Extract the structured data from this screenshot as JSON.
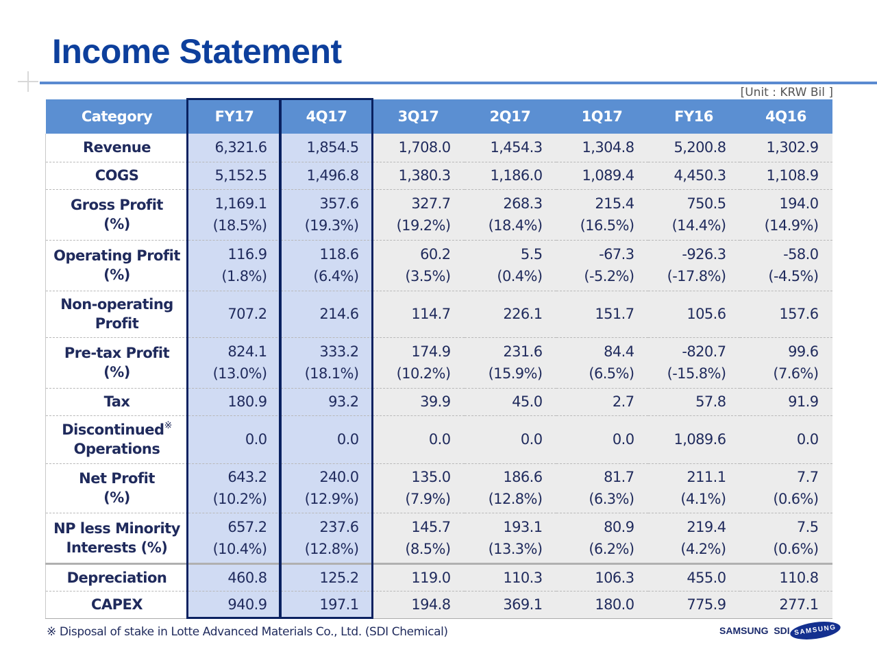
{
  "title": "Income Statement",
  "unit": "[Unit : KRW Bil ]",
  "columns": [
    "Category",
    "FY17",
    "4Q17",
    "3Q17",
    "2Q17",
    "1Q17",
    "FY16",
    "4Q16"
  ],
  "rows": [
    {
      "label": [
        "Revenue"
      ],
      "values": [
        [
          "6,321.6"
        ],
        [
          "1,854.5"
        ],
        [
          "1,708.0"
        ],
        [
          "1,454.3"
        ],
        [
          "1,304.8"
        ],
        [
          "5,200.8"
        ],
        [
          "1,302.9"
        ]
      ]
    },
    {
      "label": [
        "COGS"
      ],
      "values": [
        [
          "5,152.5"
        ],
        [
          "1,496.8"
        ],
        [
          "1,380.3"
        ],
        [
          "1,186.0"
        ],
        [
          "1,089.4"
        ],
        [
          "4,450.3"
        ],
        [
          "1,108.9"
        ]
      ]
    },
    {
      "label": [
        "Gross Profit",
        "(%)"
      ],
      "values": [
        [
          "1,169.1",
          "(18.5%)"
        ],
        [
          "357.6",
          "(19.3%)"
        ],
        [
          "327.7",
          "(19.2%)"
        ],
        [
          "268.3",
          "(18.4%)"
        ],
        [
          "215.4",
          "(16.5%)"
        ],
        [
          "750.5",
          "(14.4%)"
        ],
        [
          "194.0",
          "(14.9%)"
        ]
      ]
    },
    {
      "label": [
        "Operating Profit",
        "(%)"
      ],
      "values": [
        [
          "116.9",
          "(1.8%)"
        ],
        [
          "118.6",
          "(6.4%)"
        ],
        [
          "60.2",
          "(3.5%)"
        ],
        [
          "5.5",
          "(0.4%)"
        ],
        [
          "-67.3",
          "(-5.2%)"
        ],
        [
          "-926.3",
          "(-17.8%)"
        ],
        [
          "-58.0",
          "(-4.5%)"
        ]
      ]
    },
    {
      "label": [
        "Non-operating",
        "Profit"
      ],
      "values": [
        [
          "707.2"
        ],
        [
          "214.6"
        ],
        [
          "114.7"
        ],
        [
          "226.1"
        ],
        [
          "151.7"
        ],
        [
          "105.6"
        ],
        [
          "157.6"
        ]
      ]
    },
    {
      "label": [
        "Pre-tax Profit",
        "(%)"
      ],
      "values": [
        [
          "824.1",
          "(13.0%)"
        ],
        [
          "333.2",
          "(18.1%)"
        ],
        [
          "174.9",
          "(10.2%)"
        ],
        [
          "231.6",
          "(15.9%)"
        ],
        [
          "84.4",
          "(6.5%)"
        ],
        [
          "-820.7",
          "(-15.8%)"
        ],
        [
          "99.6",
          "(7.6%)"
        ]
      ]
    },
    {
      "label": [
        "Tax"
      ],
      "values": [
        [
          "180.9"
        ],
        [
          "93.2"
        ],
        [
          "39.9"
        ],
        [
          "45.0"
        ],
        [
          "2.7"
        ],
        [
          "57.8"
        ],
        [
          "91.9"
        ]
      ]
    },
    {
      "label": [
        "Discontinued",
        "Operations"
      ],
      "mark": "※",
      "values": [
        [
          "0.0"
        ],
        [
          "0.0"
        ],
        [
          "0.0"
        ],
        [
          "0.0"
        ],
        [
          "0.0"
        ],
        [
          "1,089.6"
        ],
        [
          "0.0"
        ]
      ]
    },
    {
      "label": [
        "Net Profit",
        "(%)"
      ],
      "values": [
        [
          "643.2",
          "(10.2%)"
        ],
        [
          "240.0",
          "(12.9%)"
        ],
        [
          "135.0",
          "(7.9%)"
        ],
        [
          "186.6",
          "(12.8%)"
        ],
        [
          "81.7",
          "(6.3%)"
        ],
        [
          "211.1",
          "(4.1%)"
        ],
        [
          "7.7",
          "(0.6%)"
        ]
      ]
    },
    {
      "label": [
        "NP less Minority",
        "Interests (%)"
      ],
      "values": [
        [
          "657.2",
          "(10.4%)"
        ],
        [
          "237.6",
          "(12.8%)"
        ],
        [
          "145.7",
          "(8.5%)"
        ],
        [
          "193.1",
          "(13.3%)"
        ],
        [
          "80.9",
          "(6.2%)"
        ],
        [
          "219.4",
          "(4.2%)"
        ],
        [
          "7.5",
          "(0.6%)"
        ]
      ]
    },
    {
      "label": [
        "Depreciation"
      ],
      "values": [
        [
          "460.8"
        ],
        [
          "125.2"
        ],
        [
          "119.0"
        ],
        [
          "110.3"
        ],
        [
          "106.3"
        ],
        [
          "455.0"
        ],
        [
          "110.8"
        ]
      ]
    },
    {
      "label": [
        "CAPEX"
      ],
      "values": [
        [
          "940.9"
        ],
        [
          "197.1"
        ],
        [
          "194.8"
        ],
        [
          "369.1"
        ],
        [
          "180.0"
        ],
        [
          "775.9"
        ],
        [
          "277.1"
        ]
      ]
    }
  ],
  "footnote": "※ Disposal of stake in Lotte Advanced Materials Co., Ltd. (SDI Chemical)",
  "brand": {
    "sdi": "SAMSUNG  SDI",
    "logo": "SAMSUNG"
  },
  "colors": {
    "title": "#0d3f9c",
    "header": "#5b8fd2",
    "highlight": "#d0dbf3",
    "box": "#0a2160"
  }
}
